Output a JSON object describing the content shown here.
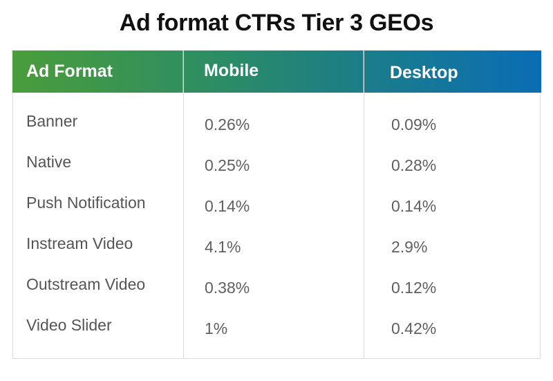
{
  "chart_data": {
    "type": "table",
    "title": "Ad format CTRs Tier 3 GEOs",
    "columns": [
      "Ad Format",
      "Mobile",
      "Desktop"
    ],
    "rows": [
      [
        "Banner",
        "0.26%",
        "0.09%"
      ],
      [
        "Native",
        "0.25%",
        "0.28%"
      ],
      [
        "Push Notification",
        "0.14%",
        "0.14%"
      ],
      [
        "Instream Video",
        "4.1%",
        "2.9%"
      ],
      [
        "Outstream Video",
        "0.38%",
        "0.12%"
      ],
      [
        "Video Slider",
        "1%",
        "0.42%"
      ]
    ]
  },
  "colors": {
    "header_start": "#4a9d3a",
    "header_end": "#0a6db5",
    "text": "#555555",
    "grid": "#dcdcdc"
  }
}
